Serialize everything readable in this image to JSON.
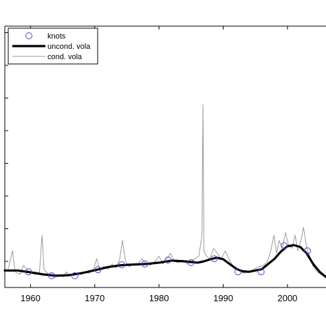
{
  "chart_data": {
    "type": "line",
    "title": "",
    "xlabel": "",
    "ylabel": "",
    "xlim": [
      1956,
      2006
    ],
    "ylim": [
      0,
      1
    ],
    "x_ticks": [
      1960,
      1970,
      1980,
      1990,
      2000
    ],
    "grid": false,
    "legend_placement": "top-left",
    "series": [
      {
        "name": "knots",
        "style": "marker",
        "color": "#4a4ad0",
        "x": [
          1959.7,
          1963.3,
          1966.9,
          1970.5,
          1974.2,
          1977.8,
          1981.4,
          1985.0,
          1988.6,
          1992.3,
          1995.9,
          1999.5,
          2003.1
        ],
        "y": [
          0.06,
          0.045,
          0.045,
          0.068,
          0.087,
          0.09,
          0.105,
          0.095,
          0.11,
          0.06,
          0.06,
          0.16,
          0.14
        ]
      },
      {
        "name": "uncond. vola",
        "style": "thick-line",
        "color": "#000000",
        "x": [
          1956,
          1958,
          1960,
          1962,
          1964,
          1966,
          1968,
          1970,
          1972,
          1974,
          1976,
          1978,
          1980,
          1982,
          1984,
          1986,
          1987,
          1988,
          1989,
          1990,
          1991,
          1992,
          1993,
          1994,
          1996,
          1998,
          1999,
          2000,
          2001,
          2002,
          2003,
          2004,
          2005,
          2006
        ],
        "y": [
          0.065,
          0.065,
          0.058,
          0.05,
          0.045,
          0.047,
          0.055,
          0.066,
          0.078,
          0.085,
          0.088,
          0.09,
          0.095,
          0.103,
          0.1,
          0.095,
          0.1,
          0.108,
          0.114,
          0.108,
          0.09,
          0.072,
          0.062,
          0.06,
          0.07,
          0.11,
          0.138,
          0.158,
          0.162,
          0.155,
          0.13,
          0.09,
          0.06,
          0.04
        ]
      },
      {
        "name": "cond. vola",
        "style": "thin-line",
        "color": "#9a9a9a",
        "x": [
          1956.5,
          1957.2,
          1957.6,
          1958.4,
          1958.9,
          1959.6,
          1960.3,
          1960.8,
          1961.4,
          1961.8,
          1962.1,
          1962.6,
          1963.2,
          1963.8,
          1964.5,
          1965.1,
          1965.6,
          1966.1,
          1966.6,
          1967.2,
          1967.9,
          1968.5,
          1969.1,
          1969.8,
          1970.3,
          1970.8,
          1971.4,
          1972.0,
          1972.7,
          1973.3,
          1973.9,
          1974.3,
          1974.8,
          1975.4,
          1976.0,
          1976.7,
          1977.3,
          1978.0,
          1978.7,
          1979.4,
          1980.0,
          1980.6,
          1981.2,
          1981.8,
          1982.4,
          1983.0,
          1983.7,
          1984.4,
          1985.0,
          1985.6,
          1986.2,
          1986.7,
          1986.85,
          1987.0,
          1987.4,
          1987.9,
          1988.5,
          1989.1,
          1989.7,
          1990.3,
          1990.9,
          1991.5,
          1992.1,
          1992.7,
          1993.3,
          1993.9,
          1994.5,
          1995.1,
          1995.7,
          1996.3,
          1996.9,
          1997.4,
          1997.9,
          1998.3,
          1998.7,
          1999.2,
          1999.7,
          2000.2,
          2000.7,
          2001.2,
          2001.6,
          2002.1,
          2002.5,
          2003.0,
          2003.5,
          2004.0,
          2004.6,
          2005.2,
          2005.8
        ],
        "y": [
          0.07,
          0.14,
          0.06,
          0.05,
          0.085,
          0.065,
          0.055,
          0.05,
          0.06,
          0.2,
          0.07,
          0.055,
          0.045,
          0.04,
          0.05,
          0.04,
          0.06,
          0.045,
          0.05,
          0.055,
          0.05,
          0.06,
          0.055,
          0.07,
          0.11,
          0.065,
          0.08,
          0.07,
          0.09,
          0.075,
          0.11,
          0.18,
          0.1,
          0.08,
          0.09,
          0.085,
          0.11,
          0.09,
          0.085,
          0.1,
          0.12,
          0.09,
          0.11,
          0.13,
          0.1,
          0.095,
          0.105,
          0.09,
          0.1,
          0.11,
          0.12,
          0.2,
          0.7,
          0.14,
          0.12,
          0.11,
          0.15,
          0.13,
          0.11,
          0.14,
          0.11,
          0.08,
          0.07,
          0.06,
          0.055,
          0.06,
          0.065,
          0.075,
          0.08,
          0.085,
          0.1,
          0.14,
          0.2,
          0.13,
          0.18,
          0.15,
          0.21,
          0.16,
          0.15,
          0.2,
          0.14,
          0.18,
          0.23,
          0.15,
          0.12,
          0.08,
          0.06,
          0.05,
          0.04
        ]
      }
    ]
  }
}
